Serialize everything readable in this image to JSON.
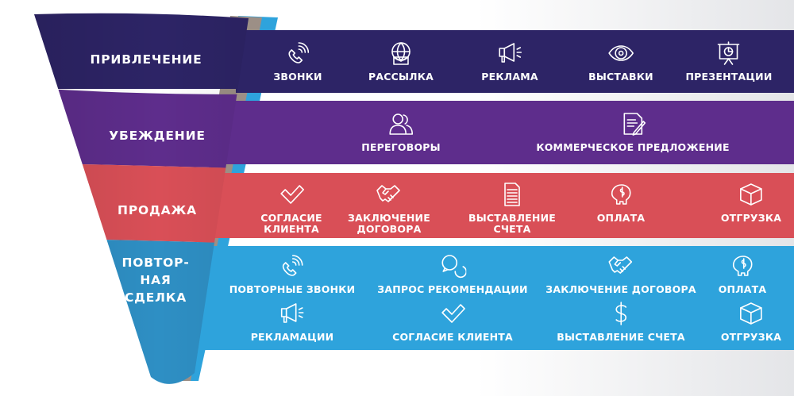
{
  "colors": {
    "attraction": "#2d2466",
    "persuasion": "#5e2d8c",
    "sale": "#d94f57",
    "repeat": "#2ea3dc"
  },
  "stages": [
    {
      "label": "ПРИВЛЕЧЕНИЕ",
      "items": [
        {
          "icon": "phone-icon",
          "label": "ЗВОНКИ"
        },
        {
          "icon": "globe-mail-icon",
          "label": "РАССЫЛКА"
        },
        {
          "icon": "megaphone-icon",
          "label": "РЕКЛАМА"
        },
        {
          "icon": "eye-icon",
          "label": "ВЫСТАВКИ"
        },
        {
          "icon": "presentation-icon",
          "label": "ПРЕЗЕНТАЦИИ"
        }
      ]
    },
    {
      "label": "УБЕЖДЕНИЕ",
      "items": [
        {
          "icon": "people-icon",
          "label": "ПЕРЕГОВОРЫ"
        },
        {
          "icon": "document-pen-icon",
          "label": "КОММЕРЧЕСКОЕ ПРЕДЛОЖЕНИЕ"
        }
      ]
    },
    {
      "label": "ПРОДАЖА",
      "items": [
        {
          "icon": "check-icon",
          "label": "СОГЛАСИЕ\nКЛИЕНТА"
        },
        {
          "icon": "handshake-icon",
          "label": "ЗАКЛЮЧЕНИЕ\nДОГОВОРА"
        },
        {
          "icon": "document-icon",
          "label": "ВЫСТАВЛЕНИЕ\nСЧЕТА"
        },
        {
          "icon": "piggy-bank-icon",
          "label": "ОПЛАТА"
        },
        {
          "icon": "box-icon",
          "label": "ОТГРУЗКА"
        }
      ]
    },
    {
      "label": "ПОВТОР-\nНАЯ\nСДЕЛКА",
      "items": [
        {
          "icon": "phone-icon",
          "label": "ПОВТОРНЫЕ ЗВОНКИ"
        },
        {
          "icon": "chat-icon",
          "label": "ЗАПРОС РЕКОМЕНДАЦИИ"
        },
        {
          "icon": "handshake-icon",
          "label": "ЗАКЛЮЧЕНИЕ ДОГОВОРА"
        },
        {
          "icon": "piggy-bank-icon",
          "label": "ОПЛАТА"
        },
        {
          "icon": "megaphone-icon",
          "label": "РЕКЛАМАЦИИ"
        },
        {
          "icon": "check-icon",
          "label": "СОГЛАСИЕ КЛИЕНТА"
        },
        {
          "icon": "dollar-icon",
          "label": "ВЫСТАВЛЕНИЕ СЧЕТА"
        },
        {
          "icon": "box-icon",
          "label": "ОТГРУЗКА"
        }
      ]
    }
  ]
}
